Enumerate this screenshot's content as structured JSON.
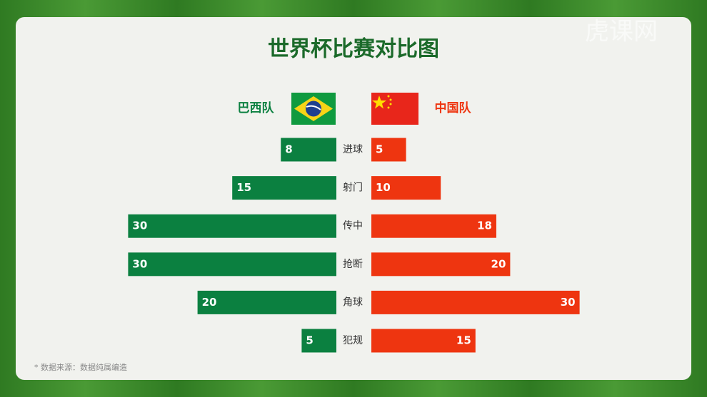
{
  "chart_data": {
    "type": "butterfly",
    "title": "世界杯比赛对比图",
    "categories": [
      "进球",
      "射门",
      "传中",
      "抢断",
      "角球",
      "犯规"
    ],
    "series": [
      {
        "name": "巴西队",
        "color": "#0b8040",
        "values": [
          8,
          15,
          30,
          30,
          20,
          5
        ]
      },
      {
        "name": "中国队",
        "color": "#ee3510",
        "values": [
          5,
          10,
          18,
          20,
          30,
          15
        ]
      }
    ],
    "footnote": "* 数据来源：数据纯属编造",
    "watermark": "虎课网"
  }
}
